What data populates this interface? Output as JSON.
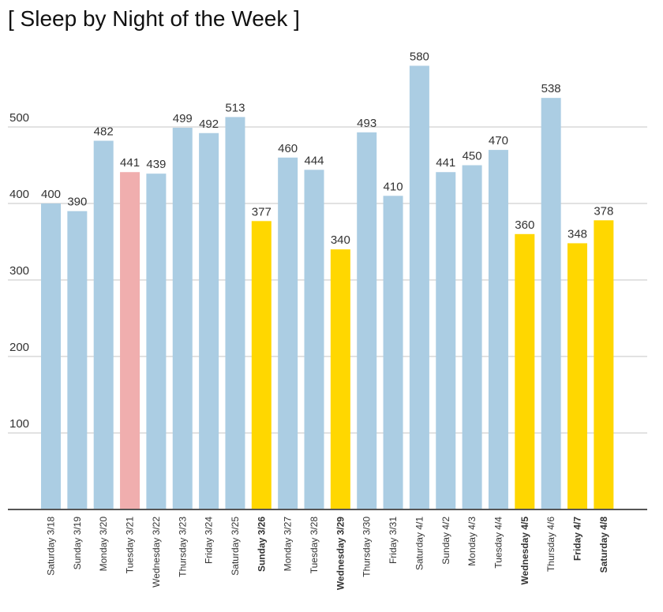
{
  "chart_data": {
    "type": "bar",
    "title": "[ Sleep by Night of the Week ]",
    "xlabel": "",
    "ylabel": "",
    "ylim": [
      0,
      600
    ],
    "yticks": [
      100,
      200,
      300,
      400,
      500
    ],
    "grid": true,
    "categories": [
      "Saturday 3/18",
      "Sunday 3/19",
      "Monday 3/20",
      "Tuesday 3/21",
      "Wednesday 3/22",
      "Thursday 3/23",
      "Friday 3/24",
      "Saturday 3/25",
      "Sunday 3/26",
      "Monday 3/27",
      "Tuesday 3/28",
      "Wednesday 3/29",
      "Thursday 3/30",
      "Friday 3/31",
      "Saturday 4/1",
      "Sunday 4/2",
      "Monday 4/3",
      "Tuesday 4/4",
      "Wednesday 4/5",
      "Thursday 4/6",
      "Friday 4/7",
      "Saturday 4/8"
    ],
    "values": [
      400,
      390,
      482,
      441,
      439,
      499,
      492,
      513,
      377,
      460,
      444,
      340,
      493,
      410,
      580,
      441,
      450,
      470,
      360,
      538,
      348,
      378
    ],
    "highlight": [
      "normal",
      "normal",
      "normal",
      "pink",
      "normal",
      "normal",
      "normal",
      "normal",
      "yellow",
      "normal",
      "normal",
      "yellow",
      "normal",
      "normal",
      "normal",
      "normal",
      "normal",
      "normal",
      "yellow",
      "normal",
      "yellow",
      "yellow"
    ],
    "colors": {
      "normal": "#abcde3",
      "pink": "#f0aeae",
      "yellow": "#ffd700",
      "grid": "#e2e2e2",
      "axis": "#555555"
    }
  }
}
